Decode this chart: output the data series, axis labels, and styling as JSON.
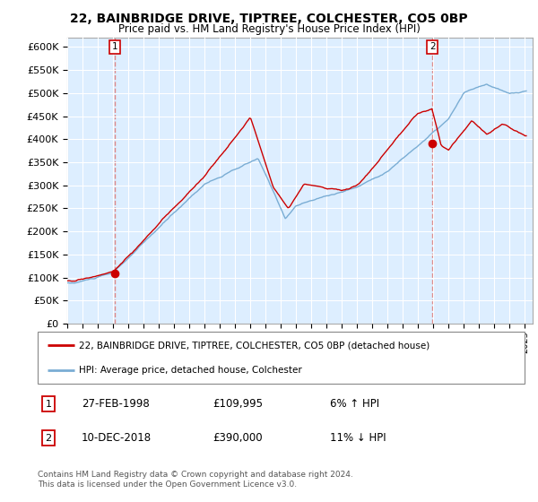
{
  "title1": "22, BAINBRIDGE DRIVE, TIPTREE, COLCHESTER, CO5 0BP",
  "title2": "Price paid vs. HM Land Registry's House Price Index (HPI)",
  "legend_label1": "22, BAINBRIDGE DRIVE, TIPTREE, COLCHESTER, CO5 0BP (detached house)",
  "legend_label2": "HPI: Average price, detached house, Colchester",
  "point1_label": "27-FEB-1998",
  "point1_price": "£109,995",
  "point1_hpi": "6% ↑ HPI",
  "point2_label": "10-DEC-2018",
  "point2_price": "£390,000",
  "point2_hpi": "11% ↓ HPI",
  "footer": "Contains HM Land Registry data © Crown copyright and database right 2024.\nThis data is licensed under the Open Government Licence v3.0.",
  "red_color": "#cc0000",
  "blue_color": "#7aadd4",
  "dashed_color": "#dd8888",
  "chart_bg": "#ddeeff",
  "ylim_min": 0,
  "ylim_max": 620000,
  "background_color": "#ffffff",
  "grid_color": "#ffffff"
}
